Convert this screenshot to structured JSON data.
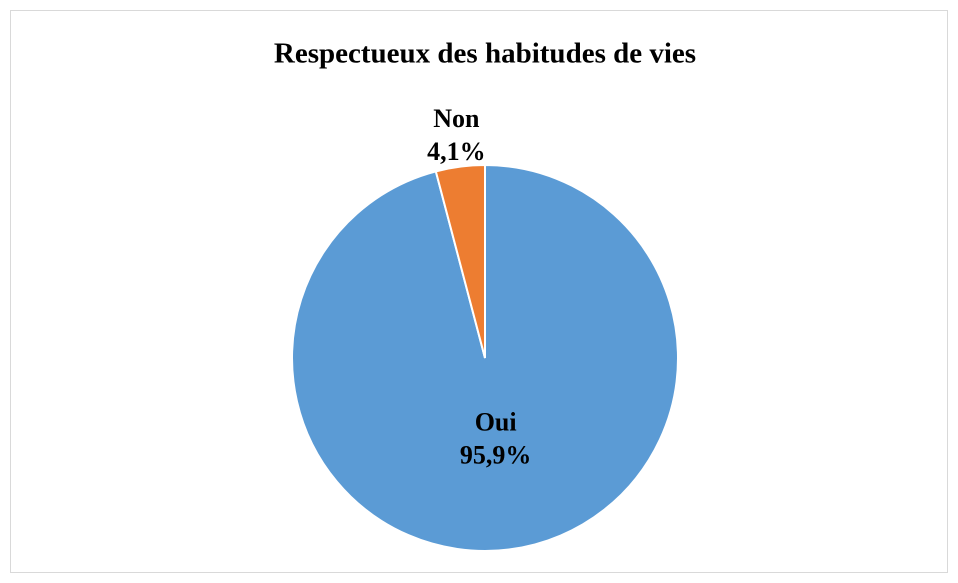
{
  "chart_data": {
    "type": "pie",
    "title": "Respectueux des habitudes de vies",
    "categories": [
      "Oui",
      "Non"
    ],
    "values": [
      95.9,
      4.1
    ],
    "value_labels": [
      "95,9%",
      "4,1%"
    ],
    "colors": [
      "#5b9bd5",
      "#ed7d31"
    ]
  }
}
